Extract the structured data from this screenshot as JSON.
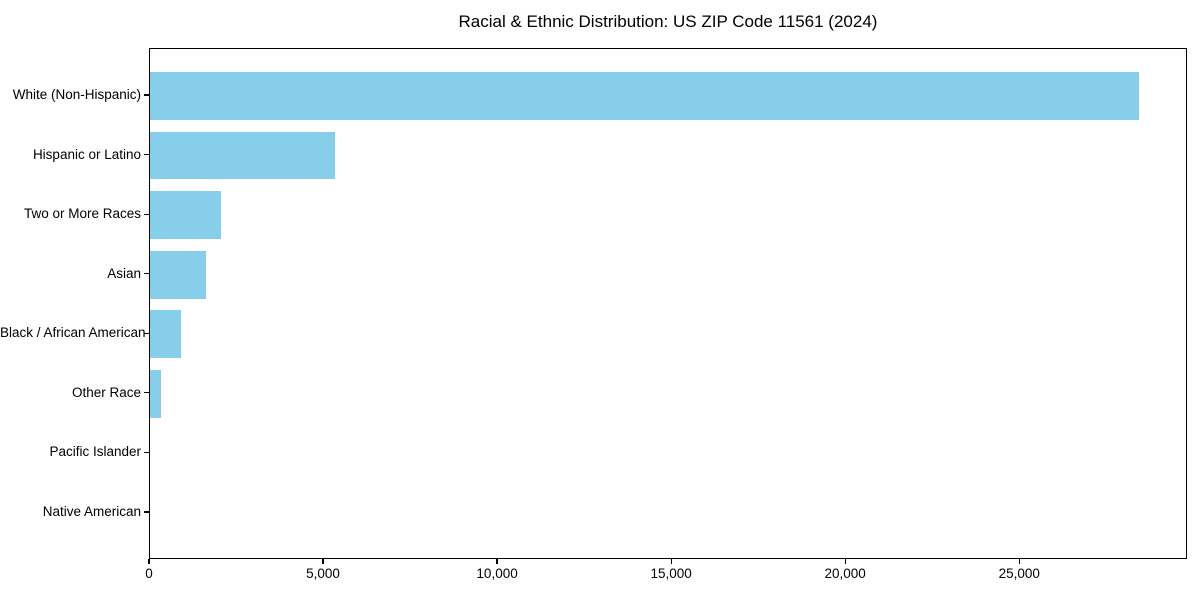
{
  "chart_data": {
    "type": "bar",
    "orientation": "horizontal",
    "title": "Racial & Ethnic Distribution: US ZIP Code 11561 (2024)",
    "categories": [
      "White (Non-Hispanic)",
      "Hispanic or Latino",
      "Two or More Races",
      "Asian",
      "Black / African American",
      "Other Race",
      "Pacific Islander",
      "Native American"
    ],
    "values": [
      28400,
      5320,
      2040,
      1610,
      890,
      320,
      0,
      0
    ],
    "xlabel": "",
    "ylabel": "",
    "xlim": [
      0,
      29820
    ],
    "x_ticks": [
      0,
      5000,
      10000,
      15000,
      20000,
      25000
    ],
    "x_tick_labels": [
      "0",
      "5,000",
      "10,000",
      "15,000",
      "20,000",
      "25,000"
    ],
    "bar_color": "#87CEEB",
    "axis_color": "#000000",
    "grid": false,
    "legend": null
  }
}
